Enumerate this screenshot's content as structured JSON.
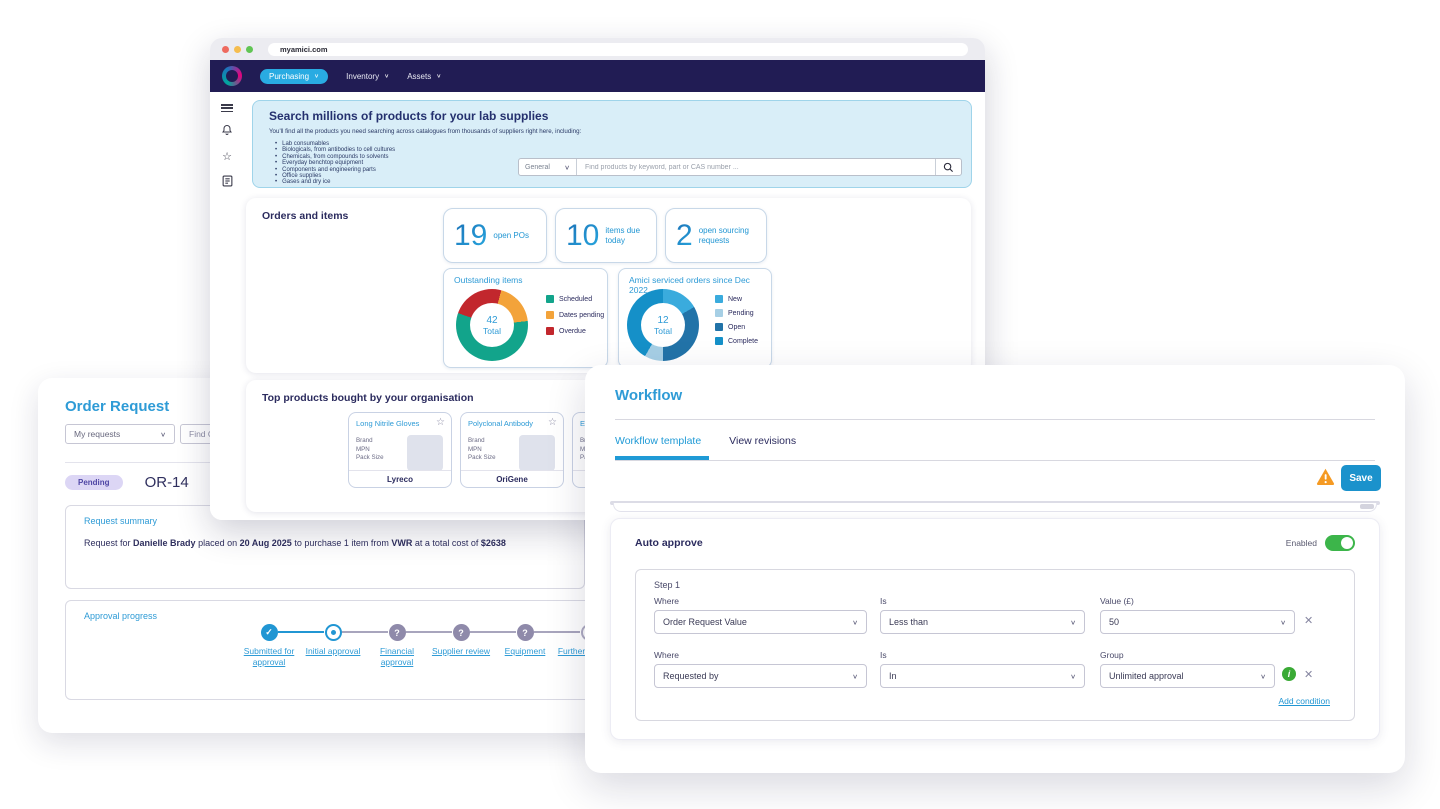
{
  "colors": {
    "accent": "#29abe2",
    "blue": "#2196d3",
    "navy": "#2b2b5e",
    "navbar": "#211c54",
    "warning": "#f59a23",
    "toggle_on": "#3cb54a",
    "badge_bg": "#dcd6f5",
    "badge_text": "#4f46a5"
  },
  "icons": {
    "sidebar": [
      "menu-icon",
      "bell-icon",
      "star-icon",
      "journal-icon"
    ],
    "search": "search-icon",
    "warning": "warning-triangle-icon",
    "info": "info-icon",
    "remove": "close-icon",
    "favorite": "star-icon",
    "logo": "amici-logo"
  },
  "browser": {
    "url": "myamici.com",
    "nav": {
      "items": [
        {
          "label": "Purchasing"
        },
        {
          "label": "Inventory"
        },
        {
          "label": "Assets"
        }
      ]
    }
  },
  "search_panel": {
    "heading": "Search millions of products for your lab supplies",
    "intro": "You'll find all the products you need searching across catalogues from thousands of suppliers right here, including:",
    "bullets": [
      "Lab consumables",
      "Biologicals, from antibodies to cell cultures",
      "Chemicals, from compounds to solvents",
      "Everyday benchtop equipment",
      "Components and engineering parts",
      "Office supplies",
      "Gases and dry ice"
    ],
    "category_value": "General",
    "placeholder": "Find products by keyword, part or CAS number ..."
  },
  "orders_panel": {
    "title": "Orders and items",
    "stats": [
      {
        "value": "19",
        "label": "open POs"
      },
      {
        "value": "10",
        "label": "items due\ntoday"
      },
      {
        "value": "2",
        "label": "open sourcing\nrequests"
      }
    ]
  },
  "chart_data": [
    {
      "type": "pie",
      "title": "Outstanding items",
      "total": 42,
      "center_value": "42",
      "center_label": "Total",
      "start_angle": 15,
      "segments": [
        {
          "name": "Dates pending",
          "value": 8,
          "color": "#f3a33a"
        },
        {
          "name": "Scheduled",
          "value": 24,
          "color": "#12a48b"
        },
        {
          "name": "Overdue",
          "value": 10,
          "color": "#c2272d"
        }
      ],
      "legend": [
        {
          "label": "Scheduled",
          "color": "#12a48b"
        },
        {
          "label": "Dates pending",
          "color": "#f3a33a"
        },
        {
          "label": "Overdue",
          "color": "#c2272d"
        }
      ]
    },
    {
      "type": "pie",
      "title": "Amici serviced orders since Dec 2022",
      "total": 12,
      "center_value": "12",
      "center_label": "Total",
      "start_angle": 0,
      "segments": [
        {
          "name": "New",
          "value": 2,
          "color": "#3aabdd"
        },
        {
          "name": "Open",
          "value": 4,
          "color": "#2273a8"
        },
        {
          "name": "Pending",
          "value": 1,
          "color": "#a6cfe5"
        },
        {
          "name": "Complete",
          "value": 5,
          "color": "#1590c8"
        }
      ],
      "legend": [
        {
          "label": "New",
          "color": "#3aabdd"
        },
        {
          "label": "Pending",
          "color": "#a6cfe5"
        },
        {
          "label": "Open",
          "color": "#2273a8"
        },
        {
          "label": "Complete",
          "color": "#1590c8"
        }
      ]
    }
  ],
  "top_products": {
    "title": "Top products bought by your organisation",
    "field_labels": [
      "Brand",
      "MPN",
      "Pack Size"
    ],
    "products": [
      {
        "name": "Long Nitrile Gloves",
        "supplier": "Lyreco"
      },
      {
        "name": "Polyclonal Antibody",
        "supplier": "OriGene"
      },
      {
        "name": "Ethanol",
        "supplier": ""
      }
    ]
  },
  "order_request": {
    "title": "Order Request",
    "filter_value": "My requests",
    "search_placeholder": "Find Order Request",
    "status": "Pending",
    "id": "OR-14",
    "summary_label": "Request summary",
    "summary_parts": [
      {
        "text": "Request for ",
        "bold": false
      },
      {
        "text": "Danielle Brady",
        "bold": true
      },
      {
        "text": " placed on ",
        "bold": false
      },
      {
        "text": "20 Aug 2025",
        "bold": true
      },
      {
        "text": " to purchase 1 item from ",
        "bold": false
      },
      {
        "text": "VWR",
        "bold": true
      },
      {
        "text": " at a total cost of ",
        "bold": false
      },
      {
        "text": "$2638",
        "bold": true
      }
    ],
    "approval_label": "Approval progress",
    "steps": [
      {
        "label": "Submitted for approval",
        "state": "done"
      },
      {
        "label": "Initial approval",
        "state": "current"
      },
      {
        "label": "Financial approval",
        "state": "question"
      },
      {
        "label": "Supplier review",
        "state": "question"
      },
      {
        "label": "Equipment",
        "state": "question"
      },
      {
        "label": "Further approval",
        "state": "upcoming"
      }
    ]
  },
  "workflow": {
    "title": "Workflow",
    "tabs": [
      {
        "label": "Workflow template",
        "active": true
      },
      {
        "label": "View revisions",
        "active": false
      }
    ],
    "save_label": "Save",
    "auto_approve": {
      "title": "Auto approve",
      "enabled_label": "Enabled",
      "enabled": true,
      "step_label": "Step 1",
      "rows": [
        {
          "where_label": "Where",
          "where_value": "Order Request Value",
          "is_label": "Is",
          "is_value": "Less than",
          "third_label": "Value (£)",
          "third_value": "50",
          "has_info": false
        },
        {
          "where_label": "Where",
          "where_value": "Requested by",
          "is_label": "Is",
          "is_value": "In",
          "third_label": "Group",
          "third_value": "Unlimited approval",
          "has_info": true
        }
      ],
      "add_condition_label": "Add condition"
    }
  }
}
